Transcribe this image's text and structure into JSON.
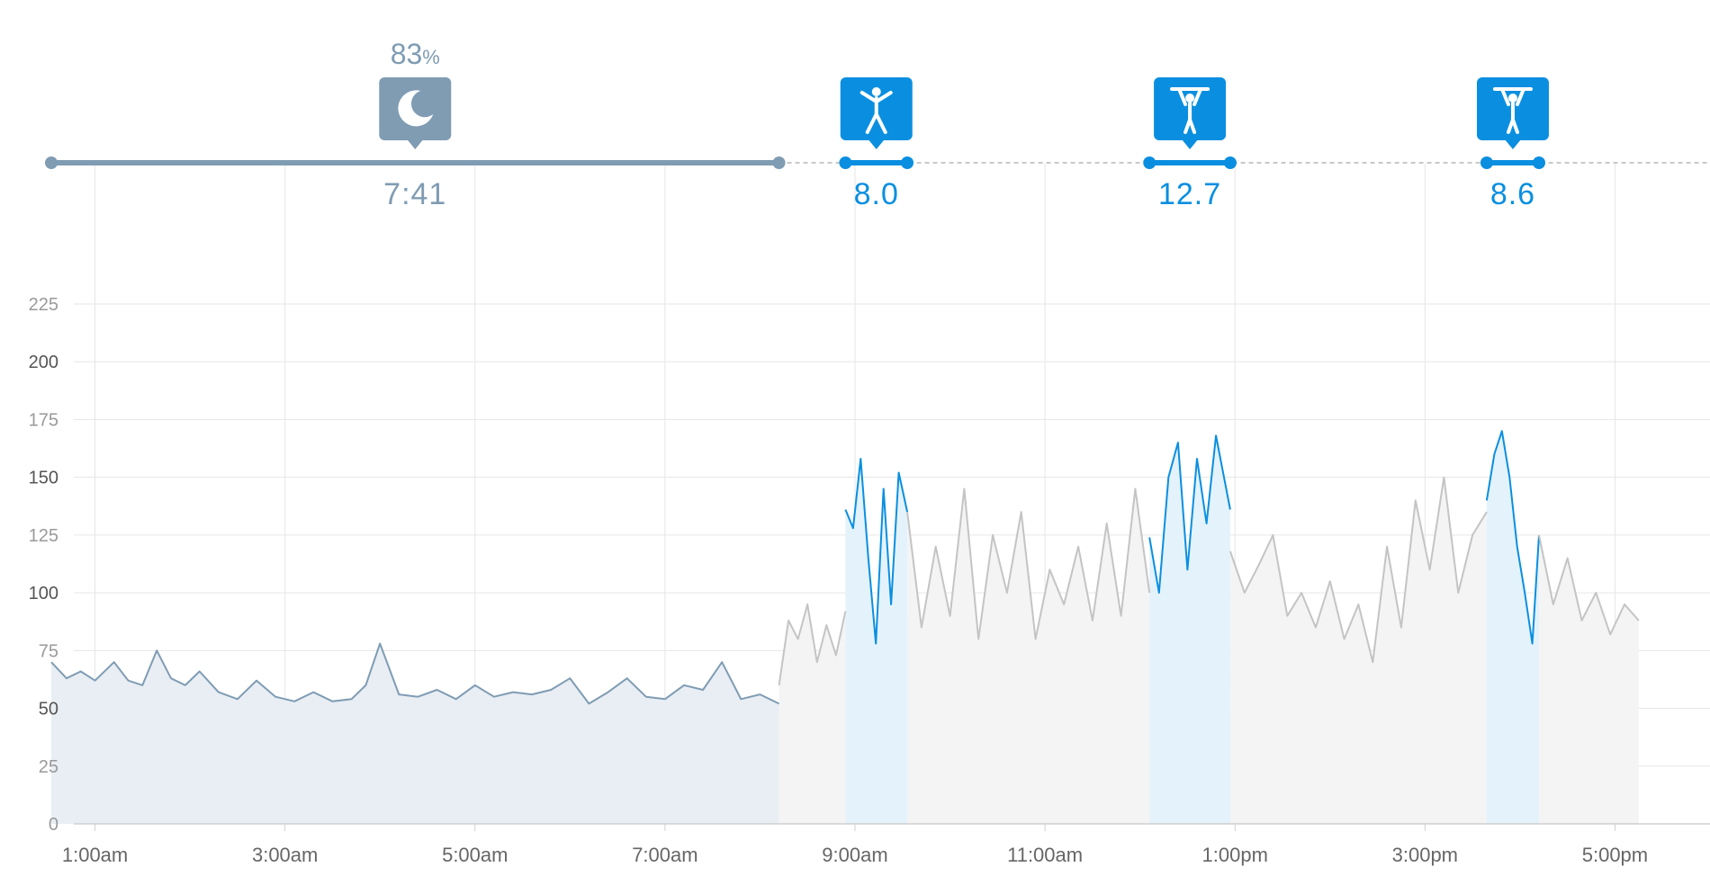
{
  "colors": {
    "sleep": "#7f9cb3",
    "sleep_fill": "#e8eef4",
    "activity": "#0a8fe0",
    "activity_fill": "#e4f2fc",
    "rest_line": "#c4c4c4",
    "rest_fill": "#f4f4f4",
    "grid": "#e6e6e6",
    "axis_text": "#9a9a9a",
    "axis_text_major": "#555555"
  },
  "events": [
    {
      "kind": "sleep",
      "icon": "moon-icon",
      "value_label": "7:41",
      "percent_value": "83",
      "percent_unit": "%",
      "start": 0.54,
      "end": 8.2
    },
    {
      "kind": "activity",
      "icon": "jumping-jack-icon",
      "value_label": "8.0",
      "start": 8.9,
      "end": 9.55
    },
    {
      "kind": "activity",
      "icon": "pullup-icon",
      "value_label": "12.7",
      "start": 12.1,
      "end": 12.95
    },
    {
      "kind": "activity",
      "icon": "pullup-icon",
      "value_label": "8.6",
      "start": 15.65,
      "end": 16.2
    }
  ],
  "chart_data": {
    "type": "line",
    "x_unit": "hour of day",
    "xlim": [
      0.0,
      18.0
    ],
    "ylim": [
      0,
      225
    ],
    "y_ticks": [
      {
        "value": 0,
        "label": "0",
        "major": false
      },
      {
        "value": 25,
        "label": "25",
        "major": false
      },
      {
        "value": 50,
        "label": "50",
        "major": true
      },
      {
        "value": 75,
        "label": "75",
        "major": false
      },
      {
        "value": 100,
        "label": "100",
        "major": true
      },
      {
        "value": 125,
        "label": "125",
        "major": false
      },
      {
        "value": 150,
        "label": "150",
        "major": true
      },
      {
        "value": 175,
        "label": "175",
        "major": false
      },
      {
        "value": 200,
        "label": "200",
        "major": true
      },
      {
        "value": 225,
        "label": "225",
        "major": false
      }
    ],
    "x_ticks": [
      {
        "value": 1,
        "label": "1:00am"
      },
      {
        "value": 3,
        "label": "3:00am"
      },
      {
        "value": 5,
        "label": "5:00am"
      },
      {
        "value": 7,
        "label": "7:00am"
      },
      {
        "value": 9,
        "label": "9:00am"
      },
      {
        "value": 11,
        "label": "11:00am"
      },
      {
        "value": 13,
        "label": "1:00pm"
      },
      {
        "value": 15,
        "label": "3:00pm"
      },
      {
        "value": 17,
        "label": "5:00pm"
      }
    ],
    "grid": true,
    "series": [
      {
        "segment": "sleep",
        "x": [
          0.54,
          0.7,
          0.85,
          1.0,
          1.2,
          1.35,
          1.5,
          1.65,
          1.8,
          1.95,
          2.1,
          2.3,
          2.5,
          2.7,
          2.9,
          3.1,
          3.3,
          3.5,
          3.7,
          3.85,
          4.0,
          4.2,
          4.4,
          4.6,
          4.8,
          5.0,
          5.2,
          5.4,
          5.6,
          5.8,
          6.0,
          6.2,
          6.4,
          6.6,
          6.8,
          7.0,
          7.2,
          7.4,
          7.6,
          7.8,
          8.0,
          8.2
        ],
        "y": [
          70,
          63,
          66,
          62,
          70,
          62,
          60,
          75,
          63,
          60,
          66,
          57,
          54,
          62,
          55,
          53,
          57,
          53,
          54,
          60,
          78,
          56,
          55,
          58,
          54,
          60,
          55,
          57,
          56,
          58,
          63,
          52,
          57,
          63,
          55,
          54,
          60,
          58,
          70,
          54,
          56,
          52
        ]
      },
      {
        "segment": "rest",
        "x": [
          8.2,
          8.3,
          8.4,
          8.5,
          8.6,
          8.7,
          8.8,
          8.9
        ],
        "y": [
          60,
          88,
          80,
          95,
          70,
          86,
          73,
          92
        ]
      },
      {
        "segment": "activity",
        "x": [
          8.9,
          8.98,
          9.06,
          9.14,
          9.22,
          9.3,
          9.38,
          9.46,
          9.55
        ],
        "y": [
          136,
          128,
          158,
          115,
          78,
          145,
          95,
          152,
          135
        ]
      },
      {
        "segment": "rest",
        "x": [
          9.55,
          9.7,
          9.85,
          10.0,
          10.15,
          10.3,
          10.45,
          10.6,
          10.75,
          10.9,
          11.05,
          11.2,
          11.35,
          11.5,
          11.65,
          11.8,
          11.95,
          12.1
        ],
        "y": [
          135,
          85,
          120,
          90,
          145,
          80,
          125,
          100,
          135,
          80,
          110,
          95,
          120,
          88,
          130,
          90,
          145,
          100
        ]
      },
      {
        "segment": "activity",
        "x": [
          12.1,
          12.2,
          12.3,
          12.4,
          12.5,
          12.6,
          12.7,
          12.8,
          12.95
        ],
        "y": [
          124,
          100,
          150,
          165,
          110,
          158,
          130,
          168,
          136
        ]
      },
      {
        "segment": "rest",
        "x": [
          12.95,
          13.1,
          13.25,
          13.4,
          13.55,
          13.7,
          13.85,
          14.0,
          14.15,
          14.3,
          14.45,
          14.6,
          14.75,
          14.9,
          15.05,
          15.2,
          15.35,
          15.5,
          15.65
        ],
        "y": [
          118,
          100,
          112,
          125,
          90,
          100,
          85,
          105,
          80,
          95,
          70,
          120,
          85,
          140,
          110,
          150,
          100,
          125,
          135
        ]
      },
      {
        "segment": "activity",
        "x": [
          15.65,
          15.73,
          15.81,
          15.89,
          15.97,
          16.05,
          16.13,
          16.2
        ],
        "y": [
          140,
          160,
          170,
          150,
          120,
          100,
          78,
          125
        ]
      },
      {
        "segment": "rest",
        "x": [
          16.2,
          16.35,
          16.5,
          16.65,
          16.8,
          16.95,
          17.1,
          17.25
        ],
        "y": [
          125,
          95,
          115,
          88,
          100,
          82,
          95,
          88
        ]
      }
    ]
  }
}
